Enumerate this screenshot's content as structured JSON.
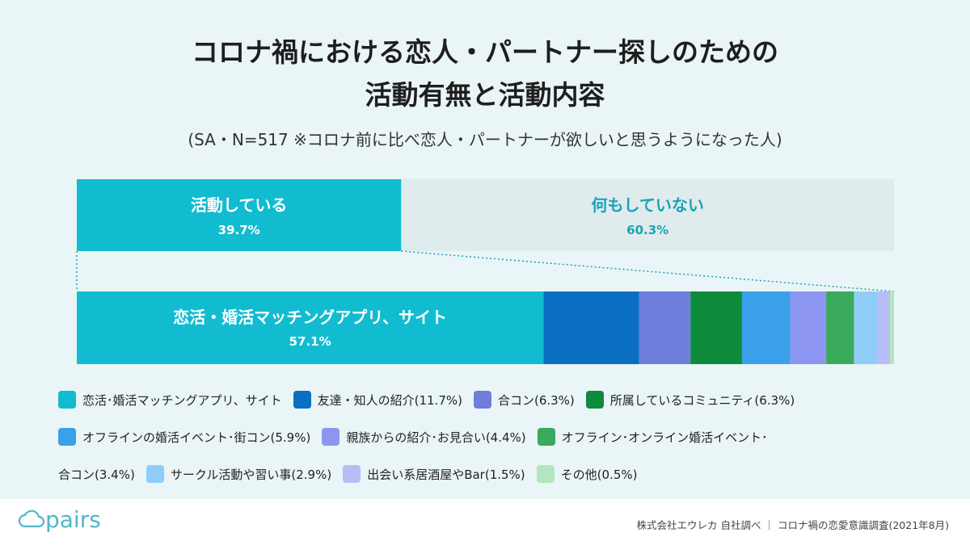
{
  "title": {
    "line1": "コロナ禍における恋人・パートナー探しのための",
    "line2": "活動有無と活動内容"
  },
  "subtitle": "(SA・N=517 ※コロナ前に比べ恋人・パートナーが欲しいと思うようになった人)",
  "chart_data": [
    {
      "type": "bar",
      "orientation": "horizontal-stacked",
      "title": "活動有無",
      "categories": [
        "活動している",
        "何もしていない"
      ],
      "values": [
        39.7,
        60.3
      ],
      "labels": [
        "39.7%",
        "60.3%"
      ],
      "colors": [
        "#12bcd0",
        "#dfebed"
      ],
      "label_colors": [
        "#ffffff",
        "#1aa3b6"
      ]
    },
    {
      "type": "bar",
      "orientation": "horizontal-stacked",
      "title": "活動内容",
      "categories": [
        "恋活・婚活マッチングアプリ、サイト",
        "友達・知人の紹介",
        "合コン",
        "所属しているコミュニティ",
        "オフラインの婚活イベント・街コン",
        "親族からの紹介・お見合い",
        "オフライン・オンライン婚活イベント・合コン",
        "サークル活動や習い事",
        "出会い系居酒屋やBar",
        "その他"
      ],
      "values": [
        57.1,
        11.7,
        6.3,
        6.3,
        5.9,
        4.4,
        3.4,
        2.9,
        1.5,
        0.5
      ],
      "first_label_name": "恋活・婚活マッチングアプリ、サイト",
      "first_label_value": "57.1%",
      "colors": [
        "#12bcd0",
        "#0a6fc2",
        "#6f7ddc",
        "#0d8a3c",
        "#3aa0ea",
        "#8d95f2",
        "#3aaa5c",
        "#8fcdf8",
        "#b8bdf6",
        "#b3e6c0"
      ]
    }
  ],
  "legend": [
    "恋活･婚活マッチングアプリ、サイト",
    "友達・知人の紹介(11.7%)",
    "合コン(6.3%)",
    "所属しているコミュニティ(6.3%)",
    "オフラインの婚活イベント･街コン(5.9%)",
    "親族からの紹介･お見合い(4.4%)",
    "オフライン･オンライン婚活イベント･",
    "合コン(3.4%)",
    "サークル活動や習い事(2.9%)",
    "出会い系居酒屋やBar(1.5%)",
    "その他(0.5%)"
  ],
  "legend_colors": [
    "#12bcd0",
    "#0a6fc2",
    "#6f7ddc",
    "#0d8a3c",
    "#3aa0ea",
    "#8d95f2",
    "#3aaa5c",
    "",
    "#8fcdf8",
    "#b8bdf6",
    "#b3e6c0"
  ],
  "footer": {
    "logo": "pairs",
    "source": "株式会社エウレカ 自社調べ ｜ コロナ禍の恋愛意識調査(2021年8月)"
  }
}
